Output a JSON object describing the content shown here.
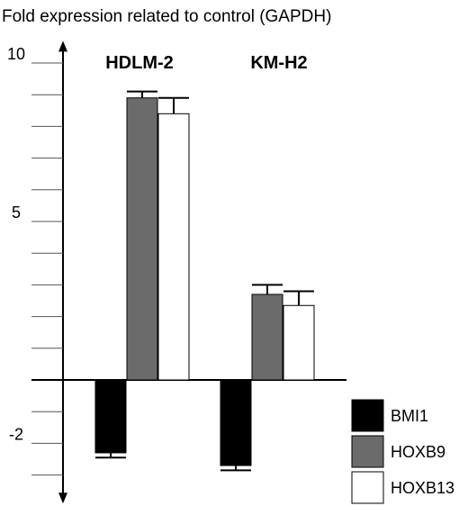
{
  "chart_data": {
    "type": "bar",
    "title": "Fold expression related to control (GAPDH)",
    "groups": [
      "HDLM-2",
      "KM-H2"
    ],
    "series": [
      {
        "name": "BMI1",
        "color": "#000000",
        "values": [
          -2.3,
          -2.7
        ],
        "errors": [
          0.15,
          0.15
        ]
      },
      {
        "name": "HOXB9",
        "color": "#6b6b6b",
        "values": [
          8.9,
          2.7
        ],
        "errors": [
          0.2,
          0.3
        ]
      },
      {
        "name": "HOXB13",
        "color": "#ffffff",
        "values": [
          8.4,
          2.35
        ],
        "errors": [
          0.5,
          0.45
        ]
      }
    ],
    "y_tick_labels": [
      {
        "value": 10,
        "label": "10"
      },
      {
        "value": 5,
        "label": "5"
      },
      {
        "value": -2,
        "label": "-2"
      }
    ],
    "ylim": [
      -3.9,
      10.7
    ],
    "y_minor_step": 1,
    "legend_position": "bottom-right"
  }
}
